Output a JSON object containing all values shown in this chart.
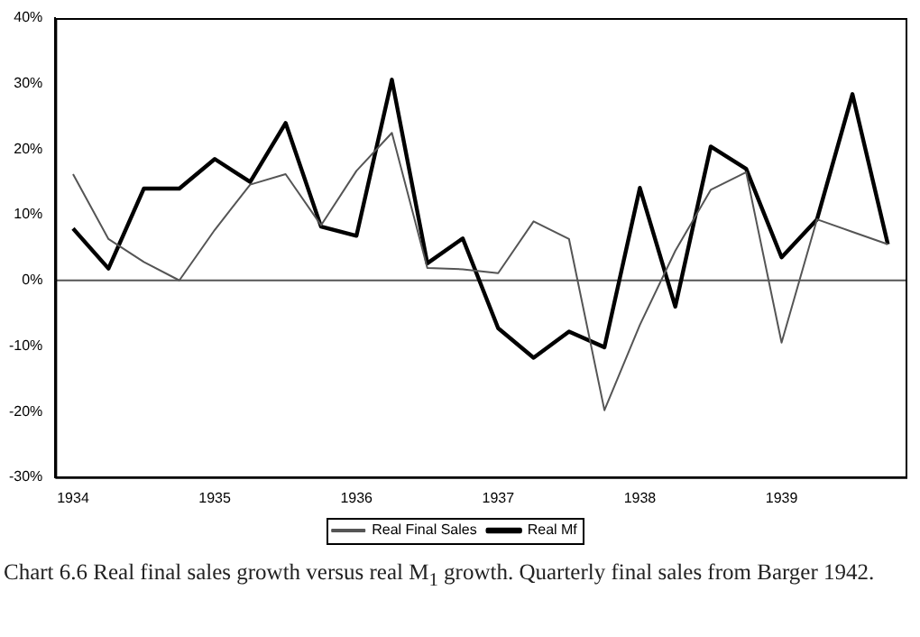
{
  "chart_data": {
    "type": "line",
    "categories": [
      "1934",
      null,
      null,
      null,
      "1935",
      null,
      null,
      null,
      "1936",
      null,
      null,
      null,
      "1937",
      null,
      null,
      null,
      "1938",
      null,
      null,
      null,
      "1939",
      null,
      null,
      null
    ],
    "series": [
      {
        "name": "Real Final Sales",
        "color": "#555555",
        "values": [
          16.2,
          6.3,
          2.8,
          0,
          7.7,
          14.6,
          16.2,
          8.4,
          16.7,
          22.5,
          1.9,
          1.7,
          1.1,
          9,
          6.3,
          -19.8,
          -6.8,
          4.5,
          13.8,
          16.5,
          -9.5,
          9.3,
          7.4,
          5.5
        ]
      },
      {
        "name": "Real Mf",
        "color": "#000000",
        "values": [
          7.9,
          1.8,
          14,
          14,
          18.5,
          15,
          24,
          8.2,
          6.8,
          30.6,
          2.6,
          6.4,
          -7.3,
          -11.8,
          -7.8,
          -10.2,
          14.1,
          -4,
          20.4,
          17,
          3.5,
          9.3,
          28.4,
          5.5
        ]
      }
    ],
    "ylim": [
      -30,
      40
    ],
    "yticks": [
      {
        "value": -30,
        "label": "-30%"
      },
      {
        "value": -20,
        "label": "-20%"
      },
      {
        "value": -10,
        "label": "-10%"
      },
      {
        "value": 0,
        "label": "0%"
      },
      {
        "value": 10,
        "label": "10%"
      },
      {
        "value": 20,
        "label": "20%"
      },
      {
        "value": 30,
        "label": "30%"
      },
      {
        "value": 40,
        "label": "40%"
      }
    ],
    "ref_lines": [
      {
        "axis": "y",
        "value": 0,
        "color": "#555555"
      }
    ],
    "grid": false,
    "legend": "bottom",
    "marker": "none",
    "line_style": "solid",
    "annotations": [
      "Chart 6.6  Real final sales growth versus real M$_{1}$ growth. Quarterly final sales from Barger 1942."
    ]
  }
}
